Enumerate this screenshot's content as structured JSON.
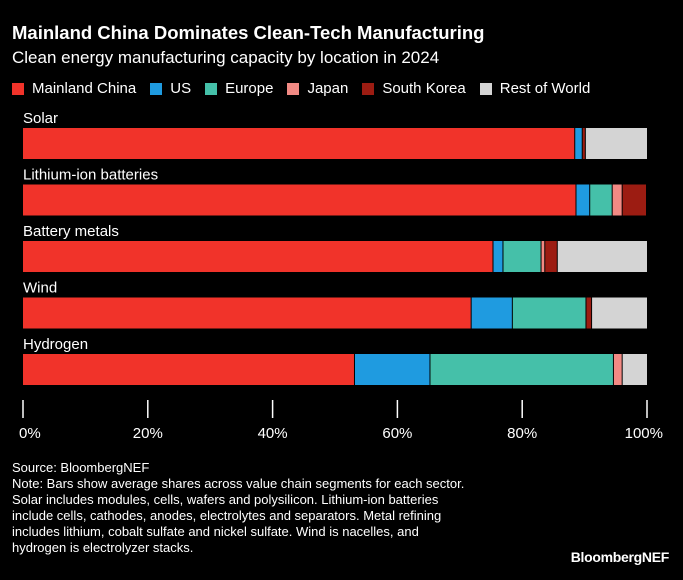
{
  "chart_data": {
    "type": "bar",
    "orientation": "horizontal",
    "stacked": true,
    "title": "Mainland China Dominates Clean-Tech Manufacturing",
    "subtitle": "Clean energy manufacturing capacity by location in 2024",
    "categories": [
      "Solar",
      "Lithium-ion batteries",
      "Battery metals",
      "Wind",
      "Hydrogen"
    ],
    "series": [
      {
        "name": "Mainland China",
        "color": "#f1332a",
        "values": [
          88.5,
          88.7,
          75.4,
          71.9,
          53.2
        ]
      },
      {
        "name": "US",
        "color": "#1f9be0",
        "values": [
          1.2,
          2.2,
          1.6,
          6.6,
          12.1
        ]
      },
      {
        "name": "Europe",
        "color": "#45c0a9",
        "values": [
          0,
          3.6,
          6.1,
          11.8,
          29.4
        ]
      },
      {
        "name": "Japan",
        "color": "#f28a84",
        "values": [
          0,
          1.6,
          0.6,
          0,
          1.4
        ]
      },
      {
        "name": "South Korea",
        "color": "#9c1c12",
        "values": [
          0.5,
          3.9,
          2.0,
          0.9,
          0
        ]
      },
      {
        "name": "Rest of World",
        "color": "#d4d4d4",
        "values": [
          9.8,
          0,
          14.3,
          8.8,
          3.9
        ]
      }
    ],
    "xlim": [
      0,
      100
    ],
    "xticks": [
      "0%",
      "20%",
      "40%",
      "60%",
      "80%",
      "100%"
    ],
    "legend_placement": "top",
    "grid": false
  },
  "footer": {
    "source": "Source: BloombergNEF",
    "note_lines": [
      "Note: Bars show average shares across value chain segments for each sector.",
      "Solar includes modules, cells, wafers and polysilicon. Lithium-ion batteries",
      "include cells, cathodes, anodes, electrolytes and separators. Metal refining",
      "includes lithium, cobalt sulfate and nickel sulfate. Wind is nacelles, and",
      "hydrogen is electrolyzer stacks."
    ],
    "logo": "BloombergNEF"
  }
}
